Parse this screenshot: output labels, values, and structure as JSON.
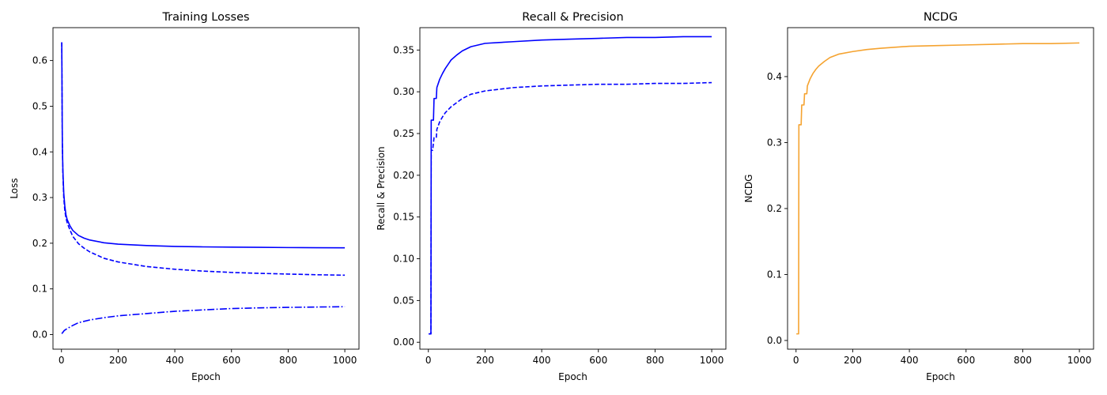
{
  "chart_data": [
    {
      "type": "line",
      "title": "Training Losses",
      "xlabel": "Epoch",
      "ylabel": "Loss",
      "xlim": [
        -30,
        1050
      ],
      "ylim": [
        -0.032,
        0.672
      ],
      "xticks": [
        0,
        200,
        400,
        600,
        800,
        1000
      ],
      "yticks": [
        0.0,
        0.1,
        0.2,
        0.3,
        0.4,
        0.5,
        0.6
      ],
      "grid": false,
      "legend": "none",
      "series": [
        {
          "style": "solid",
          "color": "#0000ff",
          "x": [
            1,
            3,
            5,
            8,
            12,
            16,
            20,
            30,
            40,
            60,
            80,
            100,
            150,
            200,
            300,
            400,
            500,
            600,
            700,
            800,
            900,
            1000
          ],
          "y": [
            0.64,
            0.42,
            0.36,
            0.31,
            0.28,
            0.262,
            0.252,
            0.238,
            0.228,
            0.217,
            0.211,
            0.207,
            0.201,
            0.198,
            0.195,
            0.193,
            0.192,
            0.1915,
            0.191,
            0.1905,
            0.1902,
            0.19
          ]
        },
        {
          "style": "dashed",
          "color": "#0000ff",
          "x": [
            1,
            3,
            5,
            8,
            12,
            16,
            20,
            30,
            40,
            60,
            80,
            100,
            150,
            200,
            300,
            400,
            500,
            600,
            700,
            800,
            900,
            1000
          ],
          "y": [
            0.64,
            0.42,
            0.35,
            0.3,
            0.27,
            0.255,
            0.245,
            0.229,
            0.215,
            0.199,
            0.189,
            0.181,
            0.167,
            0.159,
            0.149,
            0.143,
            0.139,
            0.136,
            0.134,
            0.1325,
            0.131,
            0.13
          ]
        },
        {
          "style": "dashdot",
          "color": "#0000ff",
          "x": [
            1,
            5,
            10,
            20,
            40,
            60,
            100,
            150,
            200,
            300,
            400,
            500,
            600,
            700,
            800,
            900,
            1000
          ],
          "y": [
            0.002,
            0.005,
            0.009,
            0.013,
            0.02,
            0.026,
            0.032,
            0.037,
            0.041,
            0.046,
            0.051,
            0.054,
            0.057,
            0.0585,
            0.0595,
            0.0603,
            0.061
          ]
        }
      ]
    },
    {
      "type": "line",
      "title": "Recall & Precision",
      "xlabel": "Epoch",
      "ylabel": "Recall & Precision",
      "xlim": [
        -30,
        1050
      ],
      "ylim": [
        -0.0083,
        0.3768
      ],
      "xticks": [
        0,
        200,
        400,
        600,
        800,
        1000
      ],
      "yticks": [
        0.0,
        0.05,
        0.1,
        0.15,
        0.2,
        0.25,
        0.3,
        0.35
      ],
      "grid": false,
      "legend": "none",
      "series": [
        {
          "style": "solid",
          "color": "#0000ff",
          "x": [
            1,
            5,
            9,
            10,
            18,
            20,
            28,
            30,
            40,
            50,
            60,
            70,
            80,
            100,
            120,
            150,
            200,
            250,
            300,
            400,
            500,
            600,
            700,
            800,
            900,
            1000
          ],
          "y": [
            0.01,
            0.01,
            0.01,
            0.266,
            0.266,
            0.292,
            0.292,
            0.305,
            0.315,
            0.322,
            0.328,
            0.333,
            0.338,
            0.344,
            0.349,
            0.354,
            0.358,
            0.359,
            0.36,
            0.362,
            0.363,
            0.364,
            0.365,
            0.365,
            0.366,
            0.366
          ]
        },
        {
          "style": "dashed",
          "color": "#0000ff",
          "x": [
            1,
            5,
            9,
            10,
            15,
            20,
            28,
            30,
            40,
            50,
            60,
            80,
            100,
            120,
            150,
            200,
            250,
            300,
            400,
            500,
            600,
            700,
            800,
            900,
            1000
          ],
          "y": [
            0.01,
            0.01,
            0.01,
            0.23,
            0.23,
            0.245,
            0.245,
            0.255,
            0.264,
            0.27,
            0.275,
            0.282,
            0.287,
            0.292,
            0.297,
            0.301,
            0.303,
            0.305,
            0.307,
            0.308,
            0.309,
            0.309,
            0.31,
            0.31,
            0.311
          ]
        }
      ]
    },
    {
      "type": "line",
      "title": "NCDG",
      "xlabel": "Epoch",
      "ylabel": "NCDG",
      "xlim": [
        -30,
        1050
      ],
      "ylim": [
        -0.0132,
        0.4742
      ],
      "xticks": [
        0,
        200,
        400,
        600,
        800,
        1000
      ],
      "yticks": [
        0.0,
        0.1,
        0.2,
        0.3,
        0.4
      ],
      "grid": false,
      "legend": "none",
      "series": [
        {
          "style": "solid",
          "color": "#f5a330",
          "x": [
            1,
            5,
            9,
            10,
            18,
            20,
            28,
            30,
            38,
            40,
            50,
            60,
            70,
            80,
            100,
            120,
            150,
            200,
            250,
            300,
            400,
            500,
            600,
            700,
            800,
            900,
            1000
          ],
          "y": [
            0.01,
            0.01,
            0.01,
            0.327,
            0.327,
            0.357,
            0.357,
            0.374,
            0.374,
            0.386,
            0.397,
            0.405,
            0.411,
            0.416,
            0.423,
            0.429,
            0.434,
            0.438,
            0.441,
            0.443,
            0.446,
            0.447,
            0.448,
            0.449,
            0.45,
            0.45,
            0.451
          ]
        }
      ]
    }
  ]
}
